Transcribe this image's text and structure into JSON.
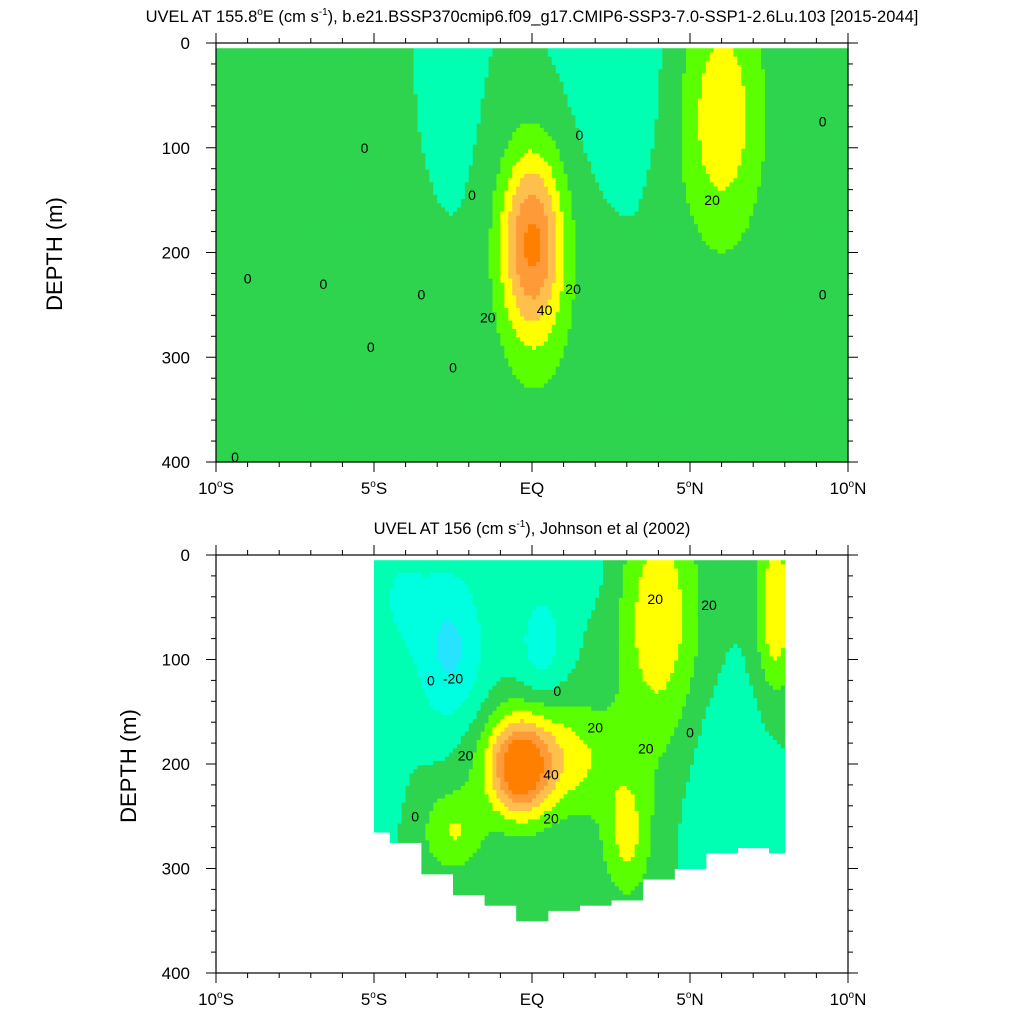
{
  "colors": {
    "levels": [
      -30,
      -20,
      -10,
      0,
      10,
      20,
      30,
      40,
      50
    ],
    "fills": [
      "#1eb5ff",
      "#26e3ff",
      "#00ffe0",
      "#00ffb2",
      "#2ed44e",
      "#5aff00",
      "#ffff00",
      "#ffbf4c",
      "#ff9a38",
      "#ff7f00"
    ],
    "contour_line": "#000000"
  },
  "chart_data": [
    {
      "type": "heatmap",
      "title": "UVEL AT 155.8°E (cm s-1), b.e21.BSSP370cmip6.f09_g17.CMIP6-SSP3-7.0-SSP1-2.6Lu.103 [2015-2044]",
      "title_parts": {
        "pre": "UVEL AT 155.8",
        "deg": "o",
        "mid": "E (cm s",
        "sup": "-1",
        "post": "), b.e21.BSSP370cmip6.f09_g17.CMIP6-SSP3-7.0-SSP1-2.6Lu.103 [2015-2044]"
      },
      "xlabel": "",
      "ylabel": "DEPTH (m)",
      "xlim": [
        -10,
        10
      ],
      "ylim": [
        400,
        0
      ],
      "y_reversed": true,
      "x_ticks": [
        {
          "v": -10,
          "num": "10",
          "deg": "o",
          "hem": "S"
        },
        {
          "v": -5,
          "num": "5",
          "deg": "o",
          "hem": "S"
        },
        {
          "v": 0,
          "num": "EQ",
          "deg": "",
          "hem": ""
        },
        {
          "v": 5,
          "num": "5",
          "deg": "o",
          "hem": "N"
        },
        {
          "v": 10,
          "num": "10",
          "deg": "o",
          "hem": "N"
        }
      ],
      "y_ticks": [
        0,
        100,
        200,
        300,
        400
      ],
      "data_extent": {
        "lon": [
          -10,
          10
        ],
        "depth": [
          5,
          400
        ]
      },
      "features": [
        {
          "lon": 0.0,
          "depth": 190,
          "value": 50,
          "sx": 1.0,
          "sz": 90,
          "sign": 1
        },
        {
          "lon": 6.0,
          "depth": 70,
          "value": 27,
          "sx": 1.4,
          "sz": 130,
          "sign": 1
        },
        {
          "lon": -8.2,
          "depth": 50,
          "value": 8,
          "sx": 1.1,
          "sz": 80,
          "sign": 1
        },
        {
          "lon": -4.5,
          "depth": 200,
          "value": 8,
          "sx": 1.3,
          "sz": 260,
          "sign": 1
        },
        {
          "lon": 0.3,
          "depth": 300,
          "value": 6,
          "sx": 2.0,
          "sz": 130,
          "sign": 1
        },
        {
          "lon": -3.0,
          "depth": 40,
          "value": -7,
          "sx": 0.9,
          "sz": 100,
          "sign": -1
        },
        {
          "lon": 3.0,
          "depth": 30,
          "value": -5,
          "sx": 1.8,
          "sz": 90,
          "sign": -1
        }
      ],
      "contour_labels": [
        {
          "lon": -9.0,
          "depth": 225,
          "text": "0"
        },
        {
          "lon": -6.6,
          "depth": 230,
          "text": "0"
        },
        {
          "lon": -3.5,
          "depth": 240,
          "text": "0"
        },
        {
          "lon": -5.3,
          "depth": 100,
          "text": "0"
        },
        {
          "lon": -5.1,
          "depth": 290,
          "text": "0"
        },
        {
          "lon": -2.5,
          "depth": 310,
          "text": "0"
        },
        {
          "lon": -9.4,
          "depth": 395,
          "text": "0"
        },
        {
          "lon": -1.9,
          "depth": 145,
          "text": "0"
        },
        {
          "lon": 1.5,
          "depth": 88,
          "text": "0"
        },
        {
          "lon": 9.2,
          "depth": 75,
          "text": "0"
        },
        {
          "lon": 9.2,
          "depth": 240,
          "text": "0"
        },
        {
          "lon": 5.7,
          "depth": 150,
          "text": "20"
        },
        {
          "lon": 1.3,
          "depth": 235,
          "text": "20"
        },
        {
          "lon": -1.4,
          "depth": 262,
          "text": "20"
        },
        {
          "lon": 0.4,
          "depth": 255,
          "text": "40"
        }
      ]
    },
    {
      "type": "heatmap",
      "title": "UVEL AT 156 (cm s-1), Johnson et al (2002)",
      "title_parts": {
        "pre": "UVEL AT 156 (cm s",
        "deg": "",
        "mid": "",
        "sup": "-1",
        "post": "), Johnson et al (2002)"
      },
      "xlabel": "",
      "ylabel": "DEPTH (m)",
      "xlim": [
        -10,
        10
      ],
      "ylim": [
        400,
        0
      ],
      "y_reversed": true,
      "x_ticks": [
        {
          "v": -10,
          "num": "10",
          "deg": "o",
          "hem": "S"
        },
        {
          "v": -5,
          "num": "5",
          "deg": "o",
          "hem": "S"
        },
        {
          "v": 0,
          "num": "EQ",
          "deg": "",
          "hem": ""
        },
        {
          "v": 5,
          "num": "5",
          "deg": "o",
          "hem": "N"
        },
        {
          "v": 10,
          "num": "10",
          "deg": "o",
          "hem": "N"
        }
      ],
      "y_ticks": [
        0,
        100,
        200,
        300,
        400
      ],
      "data_extent": {
        "lon": [
          -5,
          8
        ],
        "depth": [
          5,
          355
        ]
      },
      "max_depth_by_lon": [
        {
          "lon": -5.0,
          "depth": 265
        },
        {
          "lon": -4.0,
          "depth": 275
        },
        {
          "lon": -3.0,
          "depth": 305
        },
        {
          "lon": -2.0,
          "depth": 325
        },
        {
          "lon": -1.0,
          "depth": 335
        },
        {
          "lon": 0.0,
          "depth": 350
        },
        {
          "lon": 1.0,
          "depth": 340
        },
        {
          "lon": 2.0,
          "depth": 335
        },
        {
          "lon": 3.0,
          "depth": 330
        },
        {
          "lon": 4.0,
          "depth": 310
        },
        {
          "lon": 5.0,
          "depth": 300
        },
        {
          "lon": 6.0,
          "depth": 285
        },
        {
          "lon": 7.0,
          "depth": 280
        },
        {
          "lon": 8.0,
          "depth": 285
        }
      ],
      "features": [
        {
          "lon": -0.4,
          "depth": 205,
          "value": 45,
          "sx": 0.9,
          "sz": 45,
          "sign": 1
        },
        {
          "lon": 0.5,
          "depth": 195,
          "value": 28,
          "sx": 2.2,
          "sz": 55,
          "sign": 1
        },
        {
          "lon": 4.0,
          "depth": 60,
          "value": 28,
          "sx": 1.3,
          "sz": 120,
          "sign": 1
        },
        {
          "lon": 7.7,
          "depth": 50,
          "value": 30,
          "sx": 0.6,
          "sz": 80,
          "sign": 1
        },
        {
          "lon": 3.0,
          "depth": 270,
          "value": 22,
          "sx": 0.8,
          "sz": 60,
          "sign": 1
        },
        {
          "lon": -2.5,
          "depth": 265,
          "value": 20,
          "sx": 1.0,
          "sz": 40,
          "sign": 1
        },
        {
          "lon": -2.6,
          "depth": 90,
          "value": -22,
          "sx": 1.1,
          "sz": 80,
          "sign": -1
        },
        {
          "lon": 0.3,
          "depth": 85,
          "value": -15,
          "sx": 0.8,
          "sz": 55,
          "sign": -1
        },
        {
          "lon": -4.2,
          "depth": 40,
          "value": -10,
          "sx": 0.9,
          "sz": 60,
          "sign": -1
        },
        {
          "lon": 6.2,
          "depth": 210,
          "value": -8,
          "sx": 1.4,
          "sz": 90,
          "sign": -1
        },
        {
          "lon": -4.6,
          "depth": 195,
          "value": -5,
          "sx": 0.5,
          "sz": 70,
          "sign": -1
        },
        {
          "lon": 2.0,
          "depth": 20,
          "value": -4,
          "sx": 1.2,
          "sz": 40,
          "sign": -1
        }
      ],
      "contour_labels": [
        {
          "lon": -2.5,
          "depth": 118,
          "text": "-20"
        },
        {
          "lon": -3.2,
          "depth": 120,
          "text": "0"
        },
        {
          "lon": 0.8,
          "depth": 130,
          "text": "0"
        },
        {
          "lon": 2.0,
          "depth": 165,
          "text": "20"
        },
        {
          "lon": -2.1,
          "depth": 192,
          "text": "20"
        },
        {
          "lon": 0.6,
          "depth": 210,
          "text": "40"
        },
        {
          "lon": 0.6,
          "depth": 252,
          "text": "20"
        },
        {
          "lon": 3.6,
          "depth": 185,
          "text": "20"
        },
        {
          "lon": 3.9,
          "depth": 42,
          "text": "20"
        },
        {
          "lon": 5.6,
          "depth": 48,
          "text": "20"
        },
        {
          "lon": 5.0,
          "depth": 170,
          "text": "0"
        },
        {
          "lon": -3.7,
          "depth": 250,
          "text": "0"
        }
      ]
    }
  ]
}
